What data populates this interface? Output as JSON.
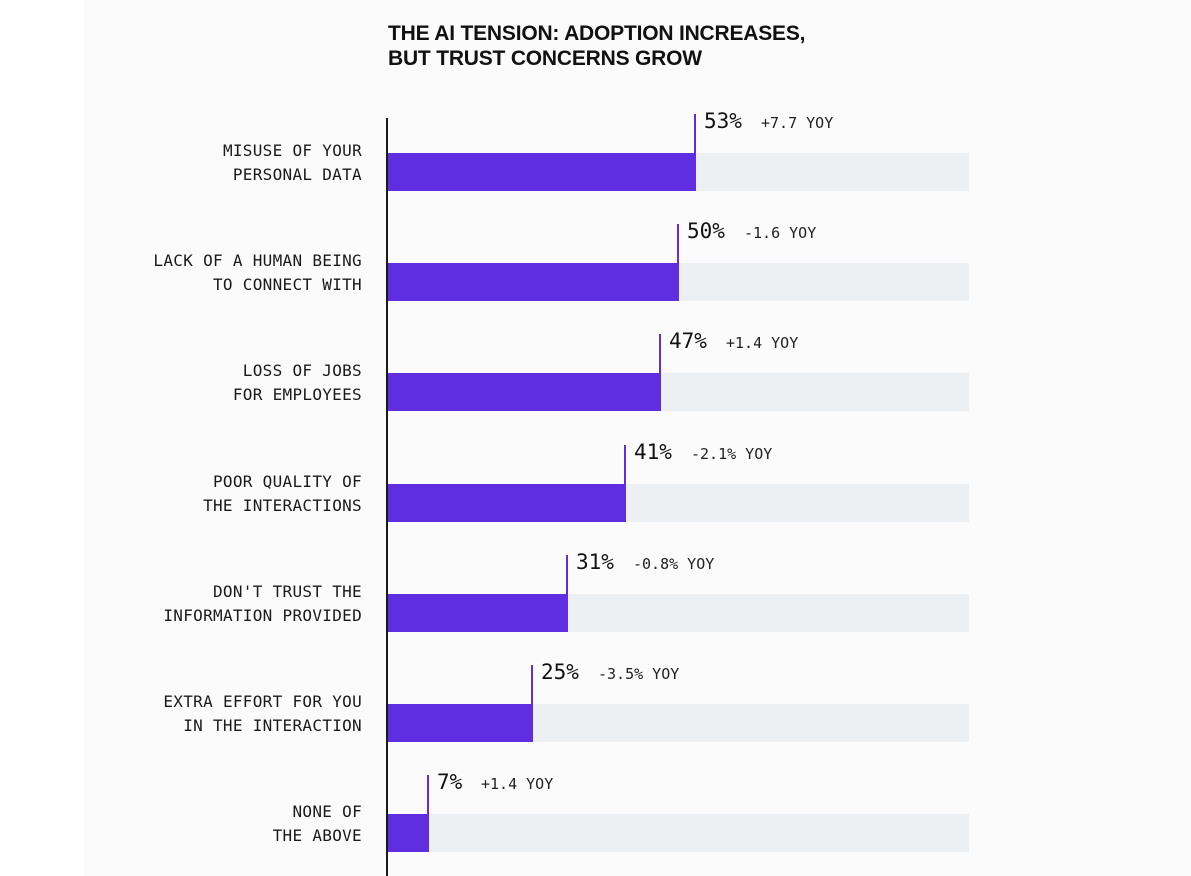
{
  "title_lines": [
    "THE AI TENSION: ADOPTION INCREASES,",
    "BUT TRUST CONCERNS GROW"
  ],
  "colors": {
    "bar": "#5f2ee0",
    "track": "#ecf0f3",
    "axis": "#1a1a1a",
    "panel": "#fbfbfc"
  },
  "chart_data": {
    "type": "bar",
    "orientation": "horizontal",
    "title": "THE AI TENSION: ADOPTION INCREASES, BUT TRUST CONCERNS GROW",
    "xlim": [
      0,
      100
    ],
    "grid": false,
    "categories": [
      [
        "MISUSE OF YOUR",
        "PERSONAL DATA"
      ],
      [
        "LACK OF A HUMAN BEING",
        "TO CONNECT WITH"
      ],
      [
        "LOSS OF JOBS",
        "FOR EMPLOYEES"
      ],
      [
        "POOR QUALITY OF",
        "THE INTERACTIONS"
      ],
      [
        "DON'T TRUST THE",
        "INFORMATION PROVIDED"
      ],
      [
        "EXTRA EFFORT FOR YOU",
        "IN THE INTERACTION"
      ],
      [
        "NONE OF",
        "THE ABOVE"
      ]
    ],
    "values": [
      53,
      50,
      47,
      41,
      31,
      25,
      7
    ],
    "value_labels": [
      "53%",
      "50%",
      "47%",
      "41%",
      "31%",
      "25%",
      "7%"
    ],
    "yoy_labels": [
      "+7.7 YOY",
      "-1.6 YOY",
      "+1.4 YOY",
      "-2.1% YOY",
      "-0.8% YOY",
      "-3.5% YOY",
      "+1.4 YOY"
    ]
  }
}
